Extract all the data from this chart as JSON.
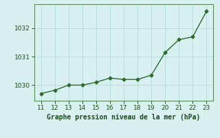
{
  "x": [
    11,
    12,
    13,
    14,
    15,
    16,
    17,
    18,
    19,
    20,
    21,
    22,
    23
  ],
  "y": [
    1029.7,
    1029.82,
    1030.0,
    1030.0,
    1030.1,
    1030.25,
    1030.2,
    1030.2,
    1030.35,
    1031.15,
    1031.6,
    1031.7,
    1032.6
  ],
  "line_color": "#2d6a2d",
  "marker": "D",
  "marker_size": 2.5,
  "bg_color": "#d8f0f0",
  "grid_color": "#b8dede",
  "xlabel": "Graphe pression niveau de la mer (hPa)",
  "xlabel_color": "#1a4a1a",
  "xlabel_fontsize": 7,
  "tick_color": "#1a4a1a",
  "tick_fontsize": 6.5,
  "ylim": [
    1029.45,
    1032.85
  ],
  "xlim": [
    10.5,
    23.5
  ],
  "yticks": [
    1030,
    1031,
    1032
  ],
  "xticks": [
    11,
    12,
    13,
    14,
    15,
    16,
    17,
    18,
    19,
    20,
    21,
    22,
    23
  ]
}
